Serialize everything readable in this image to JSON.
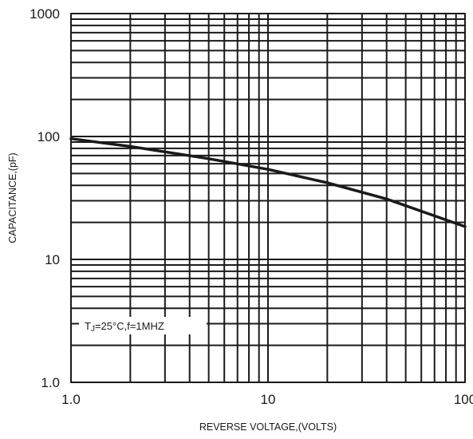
{
  "chart_data": {
    "type": "line",
    "xscale": "log",
    "yscale": "log",
    "xlim": [
      1,
      100
    ],
    "ylim": [
      1,
      1000
    ],
    "grid": true,
    "xlabel": "REVERSE VOLTAGE,(VOLTS)",
    "ylabel": "CAPACITANCE,(pF)",
    "x_tick_labels": [
      "1.0",
      "10",
      "100"
    ],
    "y_tick_labels": [
      "1.0",
      "10",
      "100",
      "1000"
    ],
    "annotation": {
      "prefix": "T",
      "sub": "J",
      "suffix": "=25°C,f=1MHZ"
    },
    "series": [
      {
        "x": [
          1,
          2,
          5,
          10,
          20,
          40,
          100
        ],
        "y": [
          96,
          83,
          66,
          54,
          42,
          31,
          18.5
        ]
      }
    ]
  }
}
